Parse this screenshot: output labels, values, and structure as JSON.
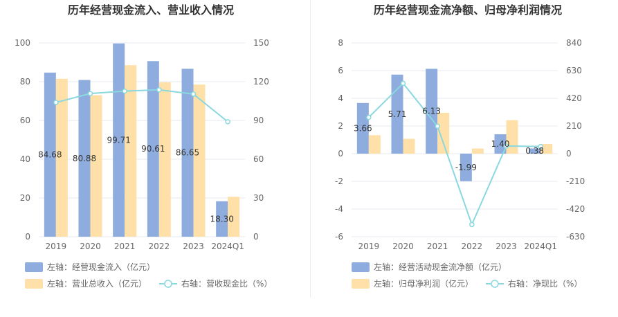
{
  "colors": {
    "bar_blue": "#8eadde",
    "bar_orange": "#fee0a8",
    "line": "#8ad8df",
    "grid": "#e6e9f2"
  },
  "chart_data": [
    {
      "type": "bar",
      "title": "历年经营现金流入、营业收入情况",
      "categories": [
        "2019",
        "2020",
        "2021",
        "2022",
        "2023",
        "2024Q1"
      ],
      "left_axis": {
        "min": 0,
        "max": 100,
        "ticks": [
          "0",
          "20",
          "40",
          "60",
          "80",
          "100"
        ]
      },
      "right_axis": {
        "min": 0,
        "max": 150,
        "ticks": [
          "0",
          "30",
          "60",
          "90",
          "120",
          "150"
        ]
      },
      "series": [
        {
          "name": "左轴：经营现金流入（亿元）",
          "kind": "bar",
          "axis": "left",
          "color": "#8eadde",
          "values": [
            84.68,
            80.88,
            99.71,
            90.61,
            86.65,
            18.3
          ],
          "labels": [
            "84.68",
            "80.88",
            "99.71",
            "90.61",
            "86.65",
            "18.30"
          ]
        },
        {
          "name": "左轴：营业总收入（亿元）",
          "kind": "bar",
          "axis": "left",
          "color": "#fee0a8",
          "values": [
            81.5,
            73.0,
            88.5,
            79.7,
            78.5,
            20.6
          ]
        },
        {
          "name": "右轴：营收现金比（%）",
          "kind": "line",
          "axis": "right",
          "color": "#8ad8df",
          "values": [
            103.9,
            110.8,
            112.7,
            113.7,
            110.4,
            89.0
          ]
        }
      ]
    },
    {
      "type": "bar",
      "title": "历年经营现金流净额、归母净利润情况",
      "categories": [
        "2019",
        "2020",
        "2021",
        "2022",
        "2023",
        "2024Q1"
      ],
      "left_axis": {
        "min": -6,
        "max": 8,
        "ticks": [
          "-6",
          "-4",
          "-2",
          "0",
          "2",
          "4",
          "6",
          "8"
        ]
      },
      "right_axis": {
        "min": -630,
        "max": 840,
        "ticks": [
          "-630",
          "-420",
          "-210",
          "0",
          "210",
          "420",
          "630",
          "840"
        ]
      },
      "series": [
        {
          "name": "左轴：经营活动现金流净额（亿元）",
          "kind": "bar",
          "axis": "left",
          "color": "#8eadde",
          "values": [
            3.66,
            5.71,
            6.13,
            -1.99,
            1.4,
            0.38
          ],
          "labels": [
            "3.66",
            "5.71",
            "6.13",
            "-1.99",
            "1.40",
            "0.38"
          ]
        },
        {
          "name": "左轴：归母净利润（亿元）",
          "kind": "bar",
          "axis": "left",
          "color": "#fee0a8",
          "values": [
            1.33,
            1.07,
            2.95,
            0.37,
            2.42,
            0.7
          ]
        },
        {
          "name": "右轴：净现比（%）",
          "kind": "line",
          "axis": "right",
          "color": "#8ad8df",
          "values": [
            275.2,
            533.6,
            207.8,
            -537.8,
            57.9,
            54.3
          ]
        }
      ]
    }
  ]
}
